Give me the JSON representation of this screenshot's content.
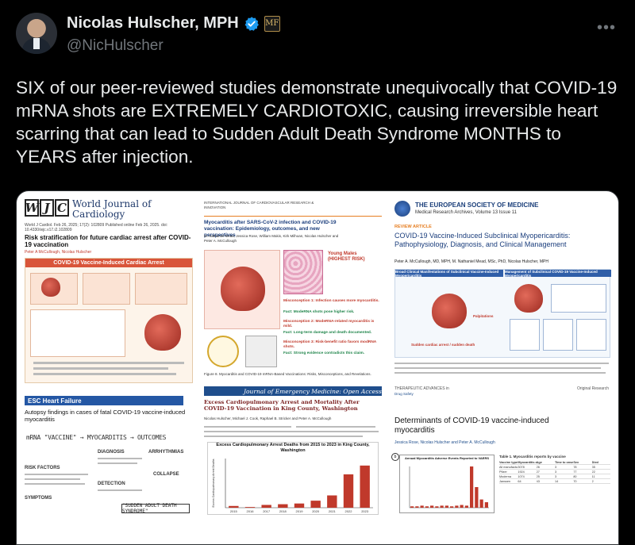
{
  "author": {
    "display_name": "Nicolas Hulscher, MPH",
    "handle": "@NicHulscher",
    "org_badge": "MF"
  },
  "tweet": {
    "text": "SIX of our peer-reviewed studies demonstrate unequivocally that COVID-19 mRNA shots are EXTREMELY CARDIOTOXIC, causing irreversible heart scarring that can lead to Sudden Adult Death Syndrome MONTHS to YEARS after injection."
  },
  "colors": {
    "background": "#000000",
    "text_primary": "#e7e9ea",
    "text_secondary": "#71767b",
    "verified_blue": "#1d9bf0"
  },
  "icons": {
    "verified": "verified-check-icon",
    "more": "more-horizontal-icon"
  },
  "media": {
    "panel1": {
      "logo_letters": [
        "W",
        "J",
        "C"
      ],
      "journal": "World Journal of Cardiology",
      "meta": "World J Cardiol. Feb 26, 2025; 17(2): 102809 Published online Feb 26, 2025. doi: 10.4330/wjc.v17.i2.102809",
      "title": "Risk stratification for future cardiac arrest after COVID-19 vaccination",
      "authors": "Peter A McCullough, Nicolas Hulscher",
      "graphic_header": "COVID-19 Vaccine-Induced Cardiac Arrest",
      "esc_label": "ESC Heart Failure",
      "title2": "Autopsy findings in cases of fatal COVID-19 vaccine-induced myocarditis",
      "flow": "mRNA \"VACCINE\" → MYOCARDITIS → OUTCOMES",
      "diagnosis": "DIAGNOSIS",
      "arrhythmias": "ARRHYTHMIAS",
      "collapse": "COLLAPSE",
      "risk_factors": "RISK FACTORS",
      "detection": "DETECTION",
      "symptoms": "SYMPTOMS",
      "sads": "\"SUDDEN ADULT DEATH SYNDROME\""
    },
    "panel2": {
      "journal": "INTERNATIONAL JOURNAL OF CARDIOVASCULAR RESEARCH & INNOVATION",
      "title": "Myocarditis after SARS-CoV-2 infection and COVID-19 vaccination: Epidemiology, outcomes, and new perspectives",
      "authors": "M. Nathaniel Mead, Jessica Rose, William Makis, Kirk Milhoan, Nicolas Hulscher and Peter A. McCullough",
      "young_males": "Young Males (HIGHEST RISK)",
      "misconception1": "Misconception 1: Infection causes more myocarditis.",
      "fact1": "Fact: ModeRNA shots pose higher risk.",
      "misconception2": "Misconception 2: ModeRNA-related myocarditis is mild.",
      "fact2": "Fact: Long-term damage and death documented.",
      "misconception3": "Misconception 3: Risk-benefit ratio favors modRNA shots.",
      "fact3": "Fact: Strong evidence contradicts this claim.",
      "caption": "Figure 8. Myocarditis and COVID-19 mRNA-Based Vaccinations: Risks, Misconceptions, and Revelations."
    },
    "panel3": {
      "journal": "Journal of Emergency Medicine: Open Access",
      "title": "Excess Cardiopulmonary Arrest and Mortality After COVID-19 Vaccination in King County, Washington",
      "authors": "Nicolas Hulscher, Michael J. Cook, Raphael B. Stricker and Peter A. McCullough",
      "chart_title": "Excess Cardiopulmonary Arrest Deaths from 2015 to 2023 in King County, Washington"
    },
    "panel4": {
      "society": "THE EUROPEAN SOCIETY OF MEDICINE",
      "archives": "Medical Research Archives, Volume 13 Issue 11",
      "tag": "REVIEW ARTICLE",
      "title": "COVID-19 Vaccine-Induced Subclinical Myopericarditis: Pathophysiology, Diagnosis, and Clinical Management",
      "authors": "Peter A. McCullough, MD, MPH, M. Nathaniel Mead, MSc, PhD, Nicolas Hulscher, MPH",
      "fig_left": "Broad Clinical Manifestations of Subclinical Vaccine-Induced Myopericarditis",
      "fig_right": "Management of Subclinical COVID-19 Vaccine-Induced Myopericarditis",
      "label_palpitations": "Palpitations",
      "label_sudden": "Sudden cardiac arrest / sudden death"
    },
    "panel5": {
      "tag": "THERAPEUTIC ADVANCES in",
      "sub": "Drug Safety",
      "original": "Original Research",
      "title": "Determinants of COVID-19 vaccine-induced myocarditis",
      "authors": "Jessica Rose, Nicolas Hulscher and Peter A. McCullough",
      "chart_title": "Annual Myocarditis Adverse Events Reported to VAERS",
      "table_title": "Table 1. Myocarditis reports by vaccine",
      "table_rows": [
        [
          "Vaccine type",
          "Myocarditis cases",
          "Age",
          "Time to onset",
          "Sex",
          "Died"
        ],
        [
          "All manufacturers",
          "3078",
          "26",
          "3",
          "78",
          "35"
        ],
        [
          "Pfizer",
          "1924",
          "27",
          "3",
          "77",
          "22"
        ],
        [
          "Moderna",
          "1074",
          "25",
          "3",
          "80",
          "11"
        ],
        [
          "Janssen",
          "64",
          "43",
          "14",
          "70",
          "2"
        ]
      ]
    }
  },
  "chart_data": {
    "type": "bar",
    "title": "Excess Cardiopulmonary Arrest Deaths from 2015 to 2023 in King County, Washington",
    "categories": [
      "2015",
      "2016",
      "2017",
      "2018",
      "2019",
      "2020",
      "2021",
      "2022",
      "2023"
    ],
    "values": [
      5,
      2,
      8,
      10,
      12,
      20,
      35,
      95,
      120
    ],
    "ylabel": "Excess Cardiopulmonary Arrest Deaths",
    "xlabel": "",
    "ylim": [
      0,
      140
    ]
  }
}
